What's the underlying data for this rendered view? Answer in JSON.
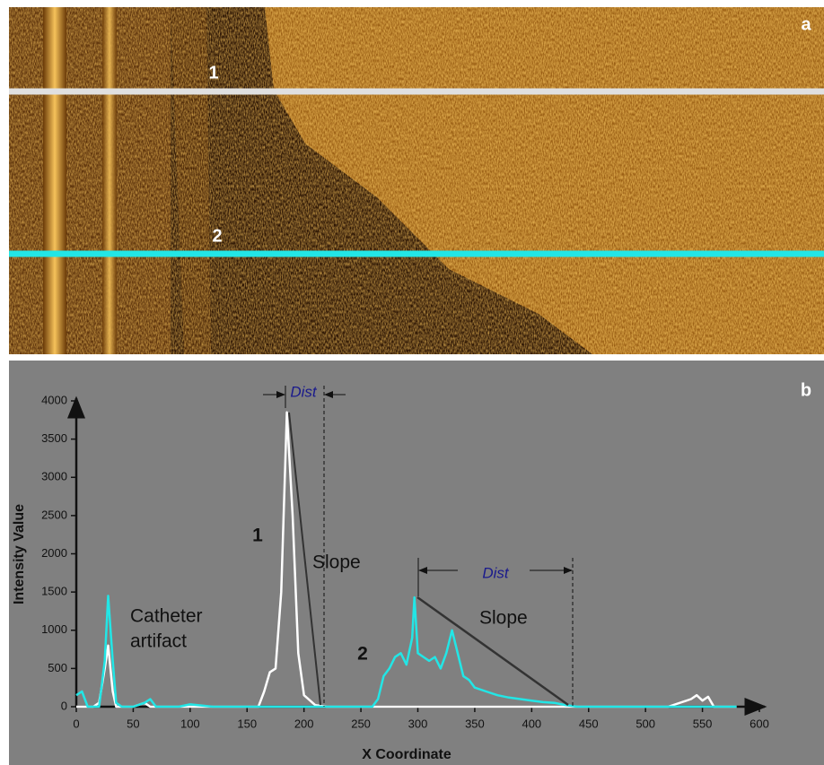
{
  "panel_a": {
    "label": "a"
  },
  "chart_data": {
    "type": "line",
    "panel_label": "b",
    "x_label": "X Coordinate",
    "y_label": "Intensity Value",
    "xlim": [
      0,
      600
    ],
    "ylim": [
      0,
      4000
    ],
    "xticks": [
      0,
      50,
      100,
      150,
      200,
      250,
      300,
      350,
      400,
      450,
      500,
      550,
      600
    ],
    "yticks": [
      0,
      500,
      1000,
      1500,
      2000,
      2500,
      3000,
      3500,
      4000
    ],
    "annotations": [
      "Catheter",
      "artifact",
      "Slope",
      "Slope",
      "Dist",
      "Dist"
    ],
    "x": [
      0,
      5,
      10,
      15,
      20,
      25,
      28,
      32,
      35,
      40,
      50,
      60,
      65,
      70,
      80,
      90,
      100,
      120,
      140,
      160,
      165,
      170,
      175,
      180,
      185,
      190,
      195,
      200,
      210,
      220,
      240,
      260,
      265,
      270,
      275,
      280,
      285,
      290,
      295,
      297,
      300,
      305,
      310,
      315,
      320,
      325,
      330,
      335,
      340,
      345,
      350,
      360,
      370,
      380,
      390,
      400,
      410,
      420,
      430,
      440,
      460,
      480,
      500,
      520,
      540,
      545,
      550,
      555,
      560,
      580
    ],
    "series": [
      {
        "name": "1",
        "color": "#ffffff",
        "values": [
          0,
          0,
          0,
          0,
          50,
          500,
          800,
          200,
          0,
          0,
          0,
          50,
          0,
          0,
          0,
          0,
          0,
          0,
          0,
          0,
          200,
          450,
          500,
          1500,
          3850,
          2500,
          700,
          150,
          20,
          0,
          0,
          0,
          0,
          0,
          0,
          0,
          0,
          0,
          0,
          0,
          0,
          0,
          0,
          0,
          0,
          0,
          0,
          0,
          0,
          0,
          0,
          0,
          0,
          0,
          0,
          0,
          0,
          0,
          0,
          0,
          0,
          0,
          0,
          0,
          100,
          150,
          80,
          130,
          0,
          0
        ]
      },
      {
        "name": "2",
        "color": "#22e6e6",
        "values": [
          150,
          200,
          0,
          0,
          0,
          600,
          1450,
          600,
          50,
          0,
          0,
          50,
          100,
          0,
          0,
          0,
          30,
          0,
          0,
          0,
          0,
          0,
          0,
          0,
          0,
          0,
          0,
          0,
          0,
          0,
          0,
          0,
          100,
          400,
          500,
          650,
          700,
          550,
          900,
          1430,
          700,
          650,
          600,
          650,
          500,
          700,
          1000,
          700,
          400,
          350,
          250,
          200,
          150,
          120,
          100,
          80,
          60,
          50,
          20,
          0,
          0,
          0,
          0,
          0,
          0,
          0,
          0,
          0,
          0,
          0
        ]
      }
    ]
  }
}
